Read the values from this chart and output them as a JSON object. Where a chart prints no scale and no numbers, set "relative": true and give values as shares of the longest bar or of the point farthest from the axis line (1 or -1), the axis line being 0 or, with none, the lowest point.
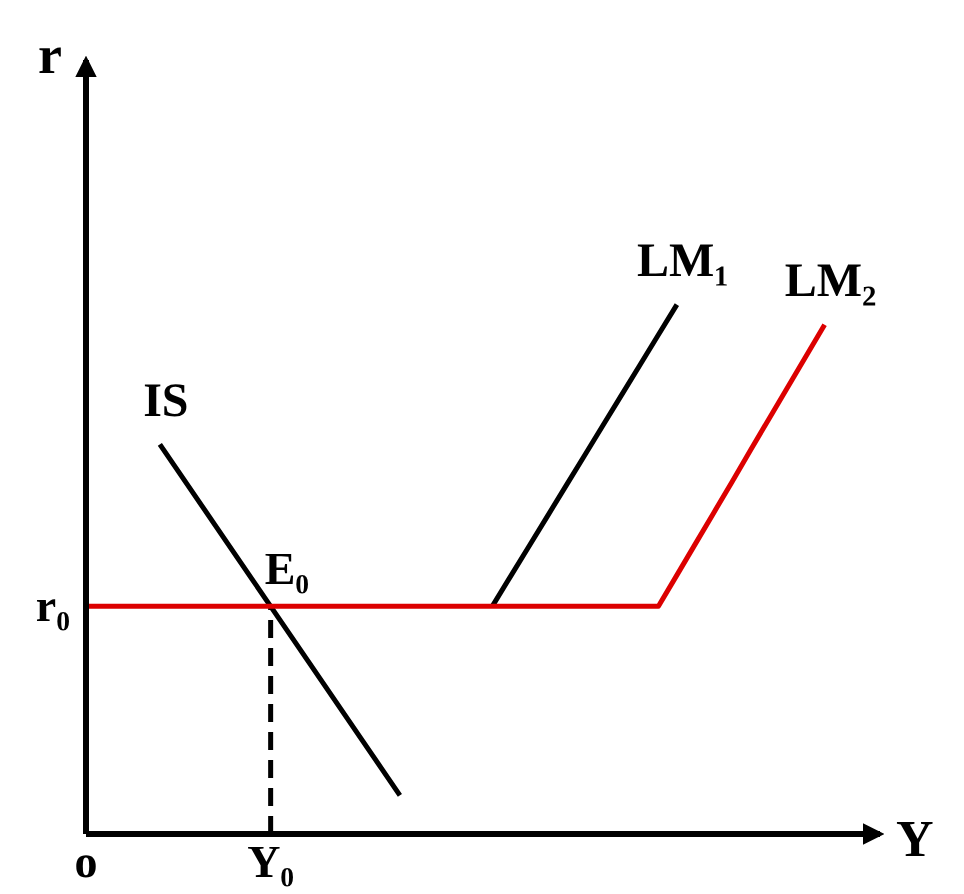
{
  "chart_data": {
    "type": "line",
    "relative": true,
    "xlabel": "Y",
    "ylabel": "r",
    "categories": [
      "o",
      null,
      null,
      null,
      null,
      null,
      null,
      null,
      null,
      null,
      "Y₀",
      null,
      null,
      null,
      null,
      null,
      null,
      null,
      null,
      null,
      null,
      null,
      null,
      null,
      null,
      null,
      null,
      null,
      null,
      null,
      null,
      null,
      null,
      null,
      null,
      null,
      null,
      null,
      null,
      null,
      null,
      null,
      null,
      null
    ],
    "series": [
      {
        "name": "IS",
        "color": "#000000",
        "values": [
          null,
          null,
          null,
          null,
          0.736,
          0.685,
          0.634,
          0.583,
          0.532,
          0.481,
          0.43,
          0.379,
          0.328,
          0.277,
          0.226,
          0.175,
          0.124,
          0.073,
          null,
          null,
          null,
          null,
          null,
          null,
          null,
          null,
          null,
          null,
          null,
          null,
          null,
          null,
          null,
          null,
          null,
          null,
          null,
          null,
          null,
          null,
          null,
          null,
          null,
          null
        ]
      },
      {
        "name": "LM₁",
        "color": "#000000",
        "values": [
          null,
          null,
          null,
          null,
          null,
          null,
          null,
          null,
          null,
          null,
          null,
          null,
          null,
          null,
          null,
          null,
          null,
          null,
          null,
          null,
          null,
          null,
          0.43,
          0.487,
          0.544,
          0.601,
          0.658,
          0.715,
          0.772,
          0.829,
          0.886,
          0.943,
          1.0,
          null,
          null,
          null,
          null,
          null,
          null,
          null,
          null,
          null,
          null,
          null
        ]
      },
      {
        "color": "#000000",
        "x": [
          "Y₀",
          "Y₀"
        ],
        "values": [
          0,
          0.43
        ],
        "line_style": "dashed"
      },
      {
        "name": "LM₂",
        "color": "#dc0000",
        "values": [
          0.43,
          0.43,
          0.43,
          0.43,
          0.43,
          0.43,
          0.43,
          0.43,
          0.43,
          0.43,
          0.43,
          0.43,
          0.43,
          0.43,
          0.43,
          0.43,
          0.43,
          0.43,
          0.43,
          0.43,
          0.43,
          0.43,
          0.43,
          0.43,
          0.43,
          0.43,
          0.43,
          0.43,
          0.43,
          0.43,
          0.43,
          0.43,
          0.489,
          0.548,
          0.607,
          0.666,
          0.726,
          0.785,
          0.844,
          0.903,
          0.962,
          null,
          null,
          null
        ]
      }
    ],
    "annotations": [
      {
        "text": "E₀",
        "x": "Y₀",
        "y": 0.43
      },
      {
        "text": "r₀",
        "x": "o",
        "y": 0.43
      }
    ]
  }
}
